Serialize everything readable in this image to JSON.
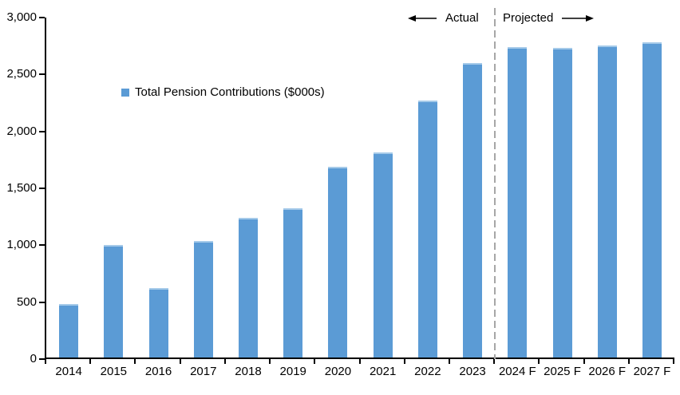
{
  "chart_data": {
    "type": "bar",
    "title": "",
    "series_name": "Total Pension Contributions ($000s)",
    "categories": [
      "2014",
      "2015",
      "2016",
      "2017",
      "2018",
      "2019",
      "2020",
      "2021",
      "2022",
      "2023",
      "2024 F",
      "2025 F",
      "2026 F",
      "2027 F"
    ],
    "values": [
      475,
      990,
      610,
      1025,
      1230,
      1315,
      1680,
      1810,
      2270,
      2600,
      2740,
      2730,
      2755,
      2785
    ],
    "xlabel": "",
    "ylabel": "",
    "ylim": [
      0,
      3000
    ],
    "ytick_step": 500,
    "ytick_labels": [
      "0",
      "500",
      "1,000",
      "1,500",
      "2,000",
      "2,500",
      "3,000"
    ],
    "grid": false,
    "legend_position": "inside-upper-left",
    "bar_color": "#5B9BD5",
    "divider": {
      "after_category": "2023",
      "style": "dashed",
      "color": "#A6A6A6"
    },
    "annotations": {
      "actual": "Actual",
      "projected": "Projected"
    }
  }
}
